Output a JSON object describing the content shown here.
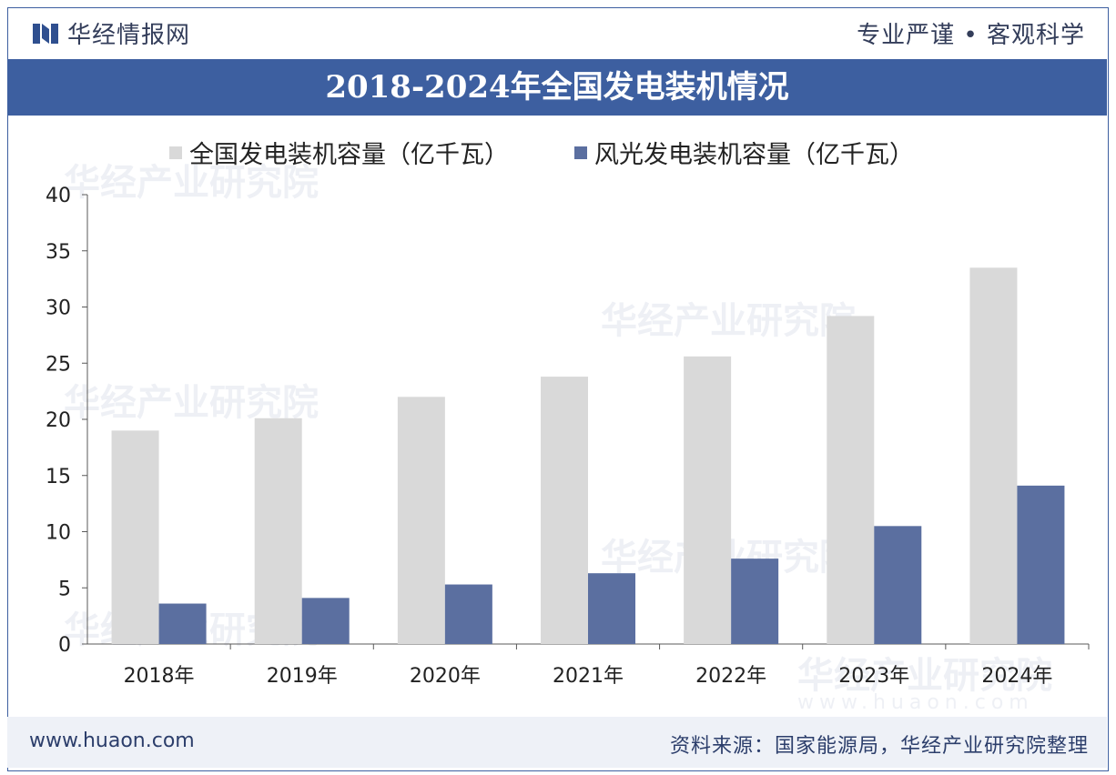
{
  "header": {
    "brand_name": "华经情报网",
    "motto": "专业严谨 • 客观科学"
  },
  "title": "2018-2024年全国发电装机情况",
  "watermark": {
    "text": "华经产业研究院",
    "url": "www.huaon.com"
  },
  "footer": {
    "url": "www.huaon.com",
    "source": "资料来源：国家能源局，华经产业研究院整理"
  },
  "colors": {
    "title_bg": "#3d5fa0",
    "series_total": "#d9d9d9",
    "series_wind_solar": "#5b6fa0"
  },
  "chart_data": {
    "type": "bar",
    "categories": [
      "2018年",
      "2019年",
      "2020年",
      "2021年",
      "2022年",
      "2023年",
      "2024年"
    ],
    "series": [
      {
        "name": "全国发电装机容量（亿千瓦）",
        "values": [
          19.0,
          20.1,
          22.0,
          23.8,
          25.6,
          29.2,
          33.5
        ],
        "color": "#d9d9d9"
      },
      {
        "name": "风光发电装机容量（亿千瓦）",
        "values": [
          3.6,
          4.1,
          5.3,
          6.3,
          7.6,
          10.5,
          14.1
        ],
        "color": "#5b6fa0"
      }
    ],
    "yticks": [
      "0",
      "5",
      "10",
      "15",
      "20",
      "25",
      "30",
      "35",
      "40"
    ],
    "ylim": [
      0,
      40
    ],
    "legend_position": "top",
    "grid": false
  }
}
